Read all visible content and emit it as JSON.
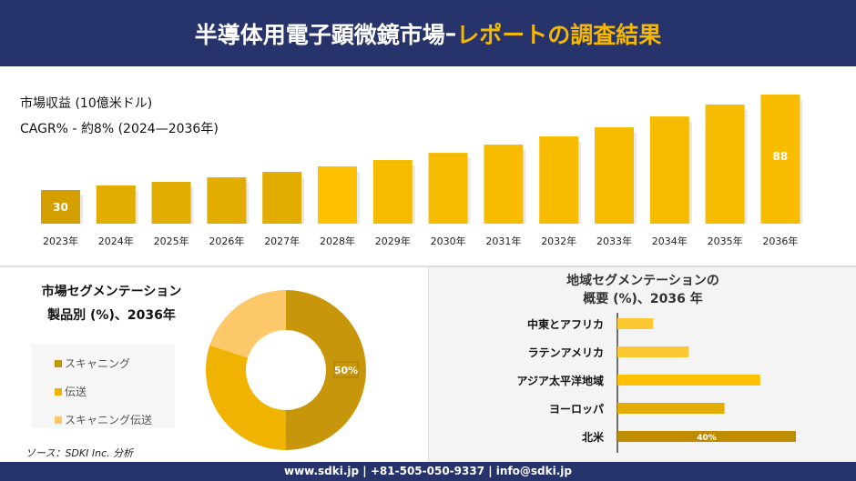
{
  "header": {
    "title_main": "半導体用電子顕微鏡市場",
    "title_sep": "–",
    "title_highlight": "レポートの調査結果"
  },
  "metrics": {
    "revenue_label": "市場収益 (10億米ドル)",
    "cagr_label": "CAGR% - 約8% (2024—2036年)"
  },
  "chart_data": [
    {
      "type": "bar",
      "categories": [
        "2023年",
        "2024年",
        "2025年",
        "2026年",
        "2027年",
        "2028年",
        "2029年",
        "2030年",
        "2031年",
        "2032年",
        "2033年",
        "2034年",
        "2035年",
        "2036年"
      ],
      "values": [
        30,
        32.8,
        35,
        37.7,
        41,
        44.4,
        48.2,
        52.6,
        57.6,
        62.6,
        68.1,
        74.7,
        81.9,
        88
      ],
      "data_labels": {
        "0": "30",
        "13": "88"
      },
      "ylabel": "市場収益 (10億米ドル)"
    },
    {
      "type": "pie",
      "title": "市場セグメンテーション 製品別 (%)、2036年",
      "labels": [
        "スキャニング",
        "伝送",
        "スキャニング伝送"
      ],
      "values": [
        50,
        30,
        20
      ],
      "colors": [
        "#c8960a",
        "#efb300",
        "#fdc86a"
      ],
      "data_labels": {
        "0": "50%"
      },
      "legend": "left"
    },
    {
      "type": "bar",
      "orientation": "horizontal",
      "title": "地域セグメンテーションの 概要 (%)、2036 年",
      "categories": [
        "中東とアフリカ",
        "ラテンアメリカ",
        "アジア太平洋地域",
        "ヨーロッパ",
        "北米"
      ],
      "values": [
        8,
        16,
        32,
        24,
        40
      ],
      "colors": [
        "#fbc831",
        "#fbc831",
        "#ffc000",
        "#e2ac00",
        "#bf8c00"
      ],
      "data_labels": {
        "4": "40%"
      }
    }
  ],
  "segment": {
    "title_line1": "市場セグメンテーション",
    "title_line2": "製品別 (%)、2036年"
  },
  "region": {
    "title_line1": "地域セグメンテーションの",
    "title_line2": "概要 (%)、2036 年"
  },
  "source": "ソース：SDKI Inc. 分析",
  "footer": "www.sdki.jp | +81-505-050-9337 | info@sdki.jp"
}
